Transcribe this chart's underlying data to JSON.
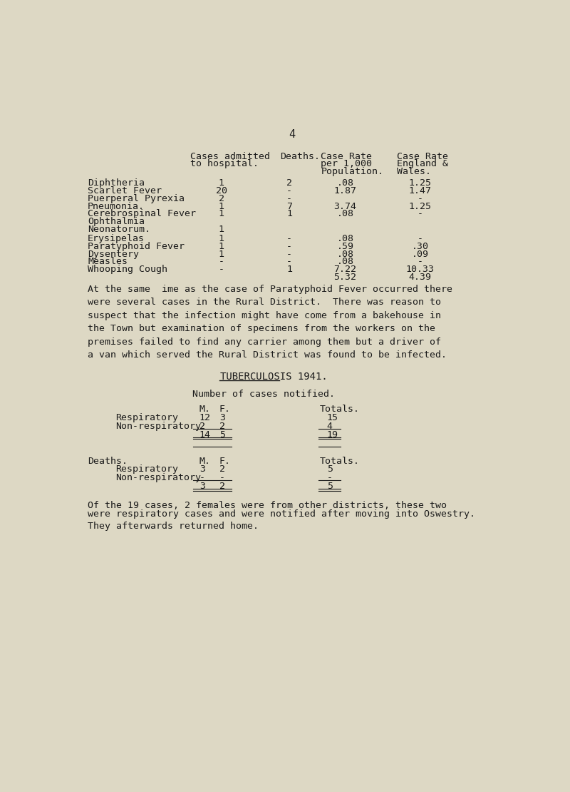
{
  "bg_color": "#ddd8c4",
  "text_color": "#1a1a1a",
  "page_number": "4",
  "diseases": [
    "Diphtheria",
    "Scarlet Fever",
    "Puerperal Pyrexia",
    "Pneumonia.",
    "Cerebrospinal Fever",
    "Ophthalmia",
    "Neonatorum.",
    "Erysipelas",
    "Paratyphoid Fever",
    "Dysentery",
    "Measles",
    "Whooping Cough"
  ],
  "cases_admitted": [
    "1",
    "20",
    "2",
    "1",
    "1",
    "",
    "1",
    "1",
    "1",
    "1",
    "-",
    "-"
  ],
  "deaths": [
    "2",
    "-",
    "-",
    "7",
    "1",
    "",
    "",
    "-",
    "-",
    "-",
    "-",
    "1"
  ],
  "case_rate_local": [
    ".08",
    "1.87",
    "",
    "3.74",
    ".08",
    "",
    "",
    ".08",
    ".59",
    ".08",
    ".08",
    "7.22"
  ],
  "case_rate_local2": [
    "",
    "",
    "",
    "",
    "",
    "",
    "",
    "",
    "",
    "",
    "",
    "5.32"
  ],
  "case_rate_ew": [
    "1.25",
    "1.47",
    "-",
    "1.25",
    "-",
    "",
    "",
    "-",
    ".30",
    ".09",
    "-",
    "10.33"
  ],
  "case_rate_ew2": [
    "",
    "",
    "",
    "",
    "",
    "",
    "",
    "",
    "",
    "",
    "",
    "4.39"
  ],
  "para1": "At the same  ime as the case of Paratyphoid Fever occurred there",
  "para2": "were several cases in the Rural District.  There was reason to",
  "para3": "suspect that the infection might have come from a bakehouse in",
  "para4": "the Town but examination of specimens from the workers on the",
  "para5": "premises failed to find any carrier among them but a driver of",
  "para6": "a van which served the Rural District was found to be infected.",
  "tb_title": "TUBERCULOSIS 1941.",
  "tb_subtitle": "Number of cases notified.",
  "footer1": "Of the 19 cases, 2 females were from other districts, these two",
  "footer2": "were respiratory cases and were notified after moving into Oswestry.",
  "footer3": "They afterwards returned home."
}
